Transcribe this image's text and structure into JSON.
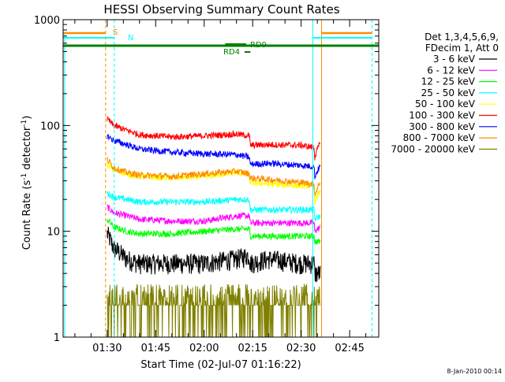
{
  "chart_data": {
    "type": "line",
    "title": "HESSI Observing Summary Count Rates",
    "xlabel": "Start Time (02-Jul-07 01:16:22)",
    "ylabel_main": "Count Rate (s",
    "ylabel_sup1": "-1",
    "ylabel_mid": " detector",
    "ylabel_sup2": "-1",
    "ylabel_end": ")",
    "yscale": "log",
    "ylim": [
      1,
      1000
    ],
    "xlim_minutes": [
      76.37,
      174.0
    ],
    "x_ticks": [
      {
        "m": 90,
        "label": "01:30"
      },
      {
        "m": 105,
        "label": "01:45"
      },
      {
        "m": 120,
        "label": "02:00"
      },
      {
        "m": 135,
        "label": "02:15"
      },
      {
        "m": 150,
        "label": "02:30"
      },
      {
        "m": 165,
        "label": "02:45"
      }
    ],
    "y_ticks": [
      {
        "v": 1,
        "label": "1"
      },
      {
        "v": 10,
        "label": "10"
      },
      {
        "v": 100,
        "label": "100"
      },
      {
        "v": 1000,
        "label": "1000"
      }
    ],
    "legend_header": [
      "Det 1,3,4,5,6,9,",
      "FDecim 1, Att 0"
    ],
    "legend_placement": "right",
    "series": [
      {
        "name": "3 - 6 keV",
        "color": "#000000",
        "x": [
          90,
          92,
          96,
          100,
          110,
          120,
          130,
          134,
          134.2,
          140,
          150,
          154,
          154.2,
          156
        ],
        "y": [
          9.5,
          7,
          5.5,
          5,
          5,
          5,
          5.5,
          6,
          5,
          5.5,
          5,
          5,
          4,
          4
        ]
      },
      {
        "name": "6 - 12 keV",
        "color": "#ff00ff",
        "x": [
          90,
          92,
          96,
          100,
          110,
          120,
          130,
          134,
          134.2,
          140,
          150,
          154,
          154.2,
          156
        ],
        "y": [
          17,
          15,
          14,
          13,
          12.5,
          12.5,
          14,
          14,
          12,
          12,
          12,
          12,
          10,
          11
        ]
      },
      {
        "name": "12 - 25 keV",
        "color": "#00ff00",
        "x": [
          90,
          92,
          96,
          100,
          110,
          120,
          130,
          134,
          134.2,
          140,
          150,
          154,
          154.2,
          156
        ],
        "y": [
          13,
          11,
          10,
          9.5,
          9.5,
          10,
          10.5,
          10.5,
          9,
          9,
          9,
          9,
          8,
          8
        ]
      },
      {
        "name": "25 - 50 keV",
        "color": "#00ffff",
        "x": [
          90,
          92,
          96,
          100,
          110,
          120,
          130,
          134,
          134.2,
          140,
          150,
          154,
          154.2,
          156
        ],
        "y": [
          23,
          21,
          20,
          19,
          19,
          19,
          20,
          20,
          16,
          16,
          16,
          16,
          13,
          14
        ]
      },
      {
        "name": "50 - 100 keV",
        "color": "#ffff00",
        "x": [
          90,
          92,
          96,
          100,
          110,
          120,
          130,
          134,
          134.2,
          140,
          150,
          154,
          154.2,
          156
        ],
        "y": [
          43,
          38,
          35,
          33,
          32,
          33,
          36,
          34,
          29,
          28,
          27,
          27,
          19,
          25
        ]
      },
      {
        "name": "100 - 300 keV",
        "color": "#ff0000",
        "x": [
          90,
          92,
          96,
          100,
          110,
          120,
          130,
          134,
          134.2,
          140,
          150,
          154,
          154.2,
          156
        ],
        "y": [
          115,
          100,
          90,
          82,
          78,
          80,
          83,
          80,
          65,
          66,
          65,
          62,
          50,
          70
        ]
      },
      {
        "name": "300 - 800 keV",
        "color": "#0000ff",
        "x": [
          90,
          92,
          96,
          100,
          110,
          120,
          130,
          134,
          134.2,
          140,
          150,
          154,
          154.2,
          156
        ],
        "y": [
          80,
          72,
          66,
          60,
          56,
          54,
          53,
          50,
          43,
          44,
          42,
          41,
          33,
          42
        ]
      },
      {
        "name": "800 - 7000 keV",
        "color": "#ff8c00",
        "x": [
          90,
          92,
          96,
          100,
          110,
          120,
          130,
          134,
          134.2,
          140,
          150,
          154,
          154.2,
          156
        ],
        "y": [
          48,
          40,
          36,
          34,
          33,
          35,
          37,
          35,
          32,
          31,
          29,
          28,
          22,
          30
        ]
      },
      {
        "name": "7000 - 20000 keV",
        "color": "#808000",
        "x": [
          90,
          92,
          96,
          100,
          110,
          120,
          130,
          134,
          134.2,
          140,
          150,
          154,
          154.2,
          156
        ],
        "y": [
          2,
          2,
          2,
          2,
          2,
          2,
          2,
          2,
          2,
          2,
          2,
          2,
          2,
          2
        ]
      }
    ],
    "annotations": {
      "S_label": "S",
      "N_label": "N",
      "RD9_label": "RD9",
      "RD4_label": "RD4"
    },
    "timestamp": "8-Jan-2010 00:14"
  }
}
